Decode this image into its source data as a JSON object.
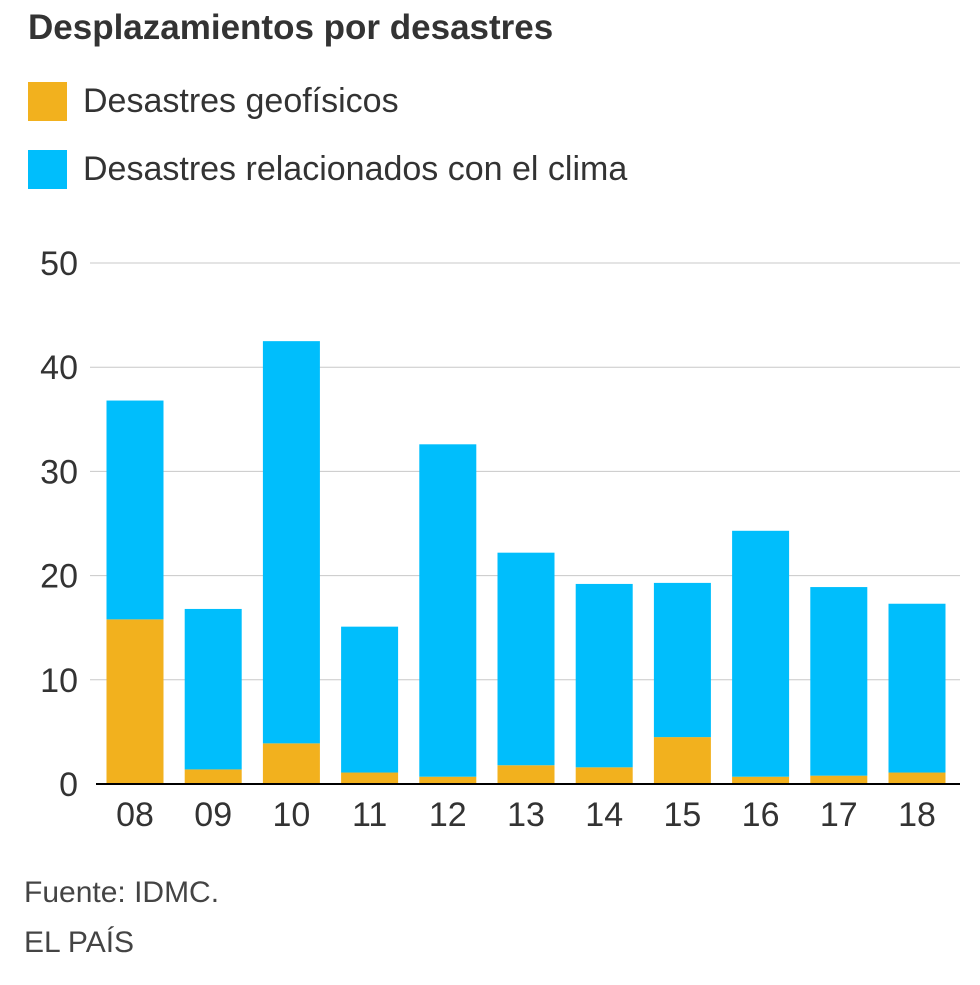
{
  "chart_data": {
    "type": "bar",
    "stacked": true,
    "title": "Desplazamientos por desastres",
    "categories": [
      "08",
      "09",
      "10",
      "11",
      "12",
      "13",
      "14",
      "15",
      "16",
      "17",
      "18"
    ],
    "series": [
      {
        "name": "Desastres geofísicos",
        "color": "#F2B11E",
        "values": [
          15.8,
          1.4,
          3.9,
          1.1,
          0.7,
          1.8,
          1.6,
          4.5,
          0.7,
          0.8,
          1.1
        ]
      },
      {
        "name": "Desastres relacionados con el clima",
        "color": "#00BEFC",
        "values": [
          21.0,
          15.4,
          38.6,
          14.0,
          31.9,
          20.4,
          17.6,
          14.8,
          23.6,
          18.1,
          16.2
        ]
      }
    ],
    "ylim": [
      0,
      50
    ],
    "yticks": [
      "0",
      "10",
      "20",
      "30",
      "40",
      "50"
    ],
    "xlabel": "",
    "ylabel": "",
    "grid": true,
    "legend": "top-left"
  },
  "footer": {
    "source": "Fuente: IDMC.",
    "brand": "EL PAÍS"
  }
}
